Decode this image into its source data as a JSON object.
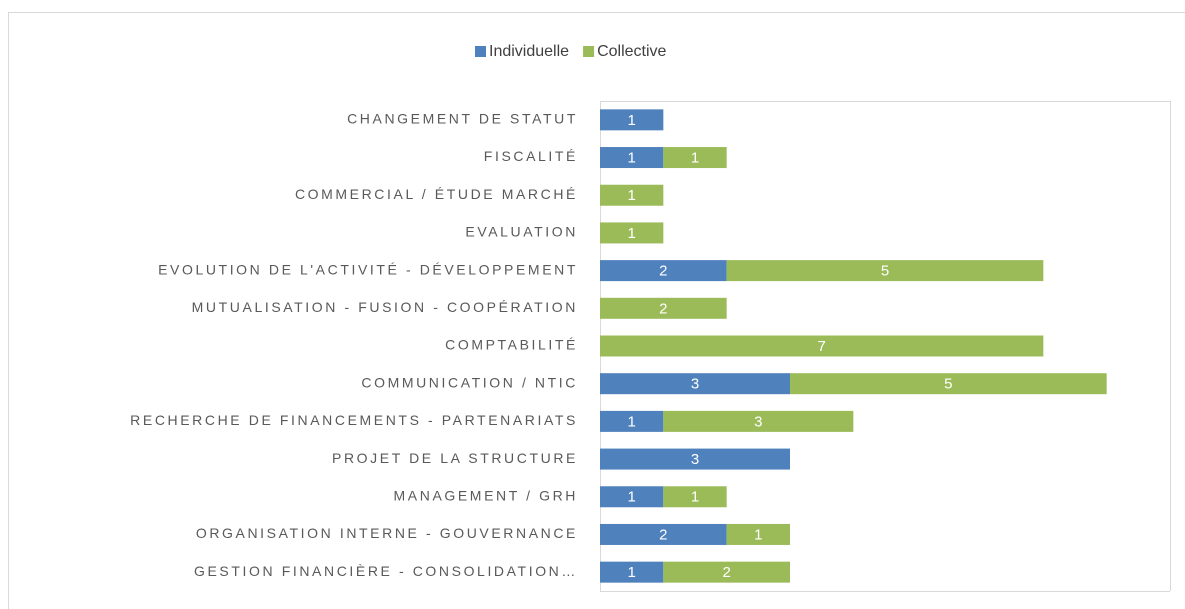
{
  "chart_data": {
    "type": "stacked-bar-horizontal",
    "categories": [
      "CHANGEMENT DE STATUT",
      "FISCALITÉ",
      "COMMERCIAL / ÉTUDE MARCHÉ",
      "EVALUATION",
      "EVOLUTION DE L'ACTIVITÉ - DÉVELOPPEMENT",
      "MUTUALISATION - FUSION - COOPÉRATION",
      "COMPTABILITÉ",
      "COMMUNICATION / NTIC",
      "RECHERCHE DE FINANCEMENTS - PARTENARIATS",
      "PROJET DE LA STRUCTURE",
      "MANAGEMENT / GRH",
      "ORGANISATION INTERNE - GOUVERNANCE",
      "GESTION FINANCIÈRE - CONSOLIDATION…"
    ],
    "series": [
      {
        "name": "Individuelle",
        "color": "#4f81bd",
        "values": [
          1,
          1,
          null,
          null,
          2,
          null,
          null,
          3,
          1,
          3,
          1,
          2,
          1
        ]
      },
      {
        "name": "Collective",
        "color": "#9bbb59",
        "values": [
          null,
          1,
          1,
          1,
          5,
          2,
          7,
          5,
          3,
          null,
          1,
          1,
          2
        ]
      }
    ],
    "xlim": [
      0,
      9
    ],
    "legend": "top"
  }
}
